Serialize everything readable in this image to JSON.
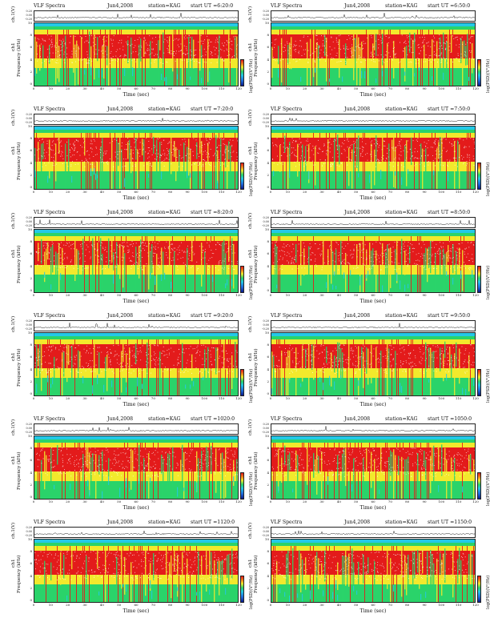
{
  "common": {
    "title": "VLF Spectra",
    "ts_ylabel": "ch.1(V)",
    "spec_ylabel_ch": "ch1",
    "spec_ylabel": "Frequency  (kHz)",
    "xlabel": "Time  (sec)",
    "cbar_label": "log(PSD)(V²/Hz)",
    "ts_ticks": [
      "0.20",
      "0.00",
      "-0.20"
    ],
    "freq_ticks": [
      "10",
      "8",
      "6",
      "4",
      "2",
      "0"
    ],
    "time_ticks": [
      "0",
      "10",
      "20",
      "30",
      "40",
      "50",
      "60",
      "70",
      "80",
      "90",
      "100",
      "110",
      "120"
    ]
  },
  "colors": {
    "low": "#0a1a8a",
    "mid_low": "#23c8e8",
    "mid": "#2ad36a",
    "mid_high": "#f2e92c",
    "high": "#e31b1b",
    "sat": "#ffffff"
  },
  "panels": [
    {
      "title": "VLF Spectra",
      "date": "Jun4,2008",
      "station": "station=KAG",
      "start": "start  UT =6:20:0"
    },
    {
      "title": "VLF Spectra",
      "date": "Jun4,2008",
      "station": "station=KAG",
      "start": "start  UT =6:50:0"
    },
    {
      "title": "VLF Spectra",
      "date": "Jun4,2008",
      "station": "station=KAG",
      "start": "start  UT =7:20:0"
    },
    {
      "title": "VLF Spectra",
      "date": "Jun4,2008",
      "station": "station=KAG",
      "start": "start  UT =7:50:0"
    },
    {
      "title": "VLF Spectra",
      "date": "Jun4,2008",
      "station": "station=KAG",
      "start": "start  UT =8:20:0"
    },
    {
      "title": "VLF Spectra",
      "date": "Jun4,2008",
      "station": "station=KAG",
      "start": "start  UT =8:50:0"
    },
    {
      "title": "VLF Spectra",
      "date": "Jun4,2008",
      "station": "station=KAG",
      "start": "start  UT =9:20:0"
    },
    {
      "title": "VLF Spectra",
      "date": "Jun4,2008",
      "station": "station=KAG",
      "start": "start  UT =9:50:0"
    },
    {
      "title": "VLF Spectra",
      "date": "Jun4,2008",
      "station": "station=KAG",
      "start": "start  UT =1020:0"
    },
    {
      "title": "VLF Spectra",
      "date": "Jun4,2008",
      "station": "station=KAG",
      "start": "start  UT =1050:0"
    },
    {
      "title": "VLF Spectra",
      "date": "Jun4,2008",
      "station": "station=KAG",
      "start": "start  UT =1120:0"
    },
    {
      "title": "VLF Spectra",
      "date": "Jun4,2008",
      "station": "station=KAG",
      "start": "start  UT =1150:0"
    }
  ],
  "chart_data": {
    "type": "heatmap",
    "panel_count": 12,
    "xlabel": "Time  (sec)",
    "ylabel": "Frequency  (kHz)",
    "xlim": [
      0,
      120
    ],
    "ylim": [
      0,
      10
    ],
    "ts_ylim": [
      -0.2,
      0.2
    ],
    "series": []
  }
}
